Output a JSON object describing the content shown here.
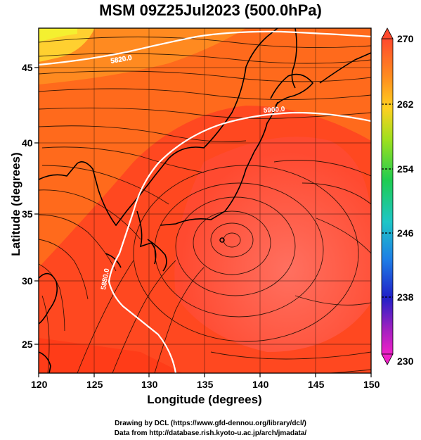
{
  "title": "MSM 09Z25Jul2023 (500.0hPa)",
  "axes": {
    "xlabel": "Longitude (degrees)",
    "ylabel": "Latitude  (degrees)",
    "x_ticks": [
      "120",
      "125",
      "130",
      "135",
      "140",
      "145",
      "150"
    ],
    "y_ticks": [
      "25",
      "30",
      "35",
      "40",
      "45"
    ],
    "xlim": [
      120,
      150
    ],
    "ylim": [
      22.5,
      47.5
    ]
  },
  "colorbar": {
    "tick_labels": [
      "270",
      "262",
      "254",
      "246",
      "238",
      "230"
    ],
    "range": [
      230,
      270
    ]
  },
  "contours": [
    {
      "label": "5820.0"
    },
    {
      "label": "5880.0"
    },
    {
      "label": "5900.0"
    }
  ],
  "credits": {
    "line1": "Drawing by DCL (https://www.gfd-dennou.org/library/dcl/)",
    "line2": "Data from http://database.rish.kyoto-u.ac.jp/arch/jmadata/"
  },
  "colors": {
    "field_warm": "#ff3c10",
    "field_mid": "#ff7a1c",
    "field_cool": "#ffd230",
    "typhoon_zone": "#ff6a5a",
    "contour": "#ffffff",
    "coastline": "#000000"
  }
}
